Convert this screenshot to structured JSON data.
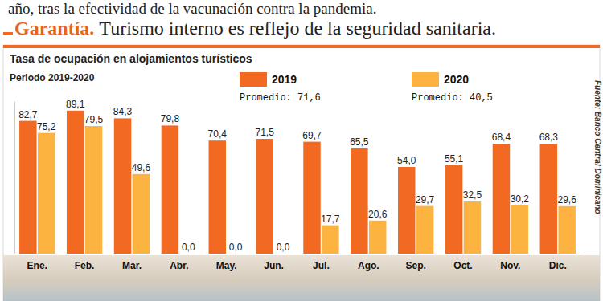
{
  "header": {
    "lead": "año, tras la efectividad de la vacunación contra la pandemia.",
    "kicker": "Garantía.",
    "headline": "Turismo interno es reflejo de la seguridad sanitaria."
  },
  "chart_data": {
    "type": "bar",
    "title": "Tasa de ocupación en alojamientos turísticos",
    "subtitle": "Periodo 2019-2020",
    "source": "Fuente: Banco Central Dominicano",
    "categories": [
      "Ene.",
      "Feb.",
      "Mar.",
      "Abr.",
      "May.",
      "Jun.",
      "Jul.",
      "Ago.",
      "Sep.",
      "Oct.",
      "Nov.",
      "Dic."
    ],
    "series": [
      {
        "name": "2019",
        "color": "#f26a21",
        "values": [
          82.7,
          89.1,
          84.3,
          79.8,
          70.4,
          71.5,
          69.7,
          65.5,
          54.0,
          55.1,
          68.4,
          68.3
        ],
        "value_labels": [
          "82,7",
          "89,1",
          "84,3",
          "79,8",
          "70,4",
          "71,5",
          "69,7",
          "65,5",
          "54,0",
          "55,1",
          "68,4",
          "68,3"
        ]
      },
      {
        "name": "2020",
        "color": "#fdb33f",
        "values": [
          75.2,
          79.5,
          49.6,
          0,
          0,
          0,
          17.7,
          20.6,
          29.7,
          32.5,
          30.2,
          29.6
        ],
        "value_labels": [
          "75,2",
          "79,5",
          "49,6",
          "0,0",
          "0,0",
          "0,0",
          "17,7",
          "20,6",
          "29,7",
          "32,5",
          "30,2",
          "29,6"
        ]
      }
    ],
    "annotations": [
      "Promedio: 71,6",
      "Promedio: 40,5"
    ],
    "ylim": [
      0,
      95
    ],
    "grid": false,
    "data_labels": true,
    "tick_labels": "x",
    "legend": "top"
  }
}
